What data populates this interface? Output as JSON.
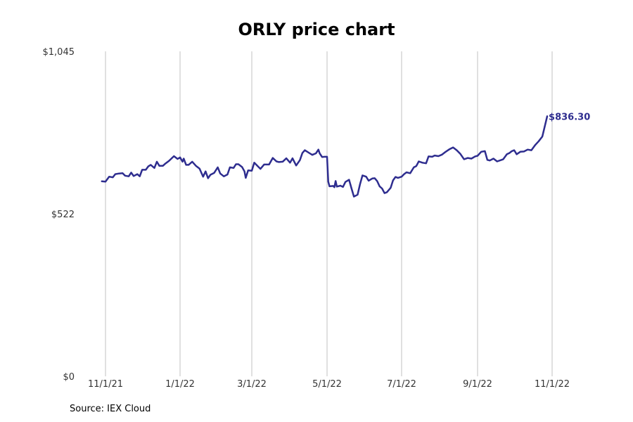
{
  "chart_data": {
    "type": "line",
    "title": "ORLY price chart",
    "source": "Source: IEX Cloud",
    "xlabel": "",
    "ylabel": "",
    "ylim": [
      0,
      1045
    ],
    "y_ticks": [
      {
        "value": 0,
        "label": "$0"
      },
      {
        "value": 522,
        "label": "$522"
      },
      {
        "value": 1045,
        "label": "$1,045"
      }
    ],
    "x_ticks": [
      {
        "date": "2021-11-01",
        "label": "11/1/21"
      },
      {
        "date": "2022-01-01",
        "label": "1/1/22"
      },
      {
        "date": "2022-03-01",
        "label": "3/1/22"
      },
      {
        "date": "2022-05-01",
        "label": "5/1/22"
      },
      {
        "date": "2022-07-01",
        "label": "7/1/22"
      },
      {
        "date": "2022-09-01",
        "label": "9/1/22"
      },
      {
        "date": "2022-11-01",
        "label": "11/1/22"
      }
    ],
    "grid": "vertical",
    "last_value_label": "$836.30",
    "color": "#2e2d8f",
    "series": [
      {
        "points": [
          [
            "2021-10-29",
            627
          ],
          [
            "2021-11-01",
            626
          ],
          [
            "2021-11-04",
            642
          ],
          [
            "2021-11-07",
            640
          ],
          [
            "2021-11-09",
            650
          ],
          [
            "2021-11-12",
            652
          ],
          [
            "2021-11-15",
            653
          ],
          [
            "2021-11-17",
            645
          ],
          [
            "2021-11-20",
            643
          ],
          [
            "2021-11-22",
            655
          ],
          [
            "2021-11-24",
            644
          ],
          [
            "2021-11-27",
            650
          ],
          [
            "2021-11-29",
            643
          ],
          [
            "2021-12-01",
            664
          ],
          [
            "2021-12-04",
            664
          ],
          [
            "2021-12-06",
            675
          ],
          [
            "2021-12-08",
            680
          ],
          [
            "2021-12-11",
            670
          ],
          [
            "2021-12-13",
            690
          ],
          [
            "2021-12-15",
            677
          ],
          [
            "2021-12-18",
            677
          ],
          [
            "2021-12-20",
            684
          ],
          [
            "2021-12-23",
            693
          ],
          [
            "2021-12-27",
            708
          ],
          [
            "2021-12-30",
            699
          ],
          [
            "2022-01-01",
            704
          ],
          [
            "2022-01-03",
            690
          ],
          [
            "2022-01-04",
            700
          ],
          [
            "2022-01-06",
            680
          ],
          [
            "2022-01-08",
            680
          ],
          [
            "2022-01-11",
            690
          ],
          [
            "2022-01-14",
            677
          ],
          [
            "2022-01-17",
            668
          ],
          [
            "2022-01-20",
            642
          ],
          [
            "2022-01-22",
            659
          ],
          [
            "2022-01-24",
            637
          ],
          [
            "2022-01-26",
            648
          ],
          [
            "2022-01-29",
            654
          ],
          [
            "2022-02-01",
            672
          ],
          [
            "2022-02-03",
            652
          ],
          [
            "2022-02-06",
            643
          ],
          [
            "2022-02-09",
            649
          ],
          [
            "2022-02-11",
            672
          ],
          [
            "2022-02-14",
            670
          ],
          [
            "2022-02-16",
            682
          ],
          [
            "2022-02-18",
            682
          ],
          [
            "2022-02-21",
            673
          ],
          [
            "2022-02-23",
            659
          ],
          [
            "2022-02-24",
            638
          ],
          [
            "2022-02-26",
            662
          ],
          [
            "2022-03-01",
            661
          ],
          [
            "2022-03-03",
            687
          ],
          [
            "2022-03-06",
            675
          ],
          [
            "2022-03-08",
            667
          ],
          [
            "2022-03-11",
            681
          ],
          [
            "2022-03-15",
            681
          ],
          [
            "2022-03-18",
            702
          ],
          [
            "2022-03-21",
            691
          ],
          [
            "2022-03-23",
            689
          ],
          [
            "2022-03-26",
            690
          ],
          [
            "2022-03-29",
            701
          ],
          [
            "2022-04-01",
            687
          ],
          [
            "2022-04-03",
            701
          ],
          [
            "2022-04-06",
            678
          ],
          [
            "2022-04-09",
            695
          ],
          [
            "2022-04-11",
            718
          ],
          [
            "2022-04-13",
            727
          ],
          [
            "2022-04-17",
            717
          ],
          [
            "2022-04-19",
            712
          ],
          [
            "2022-04-22",
            717
          ],
          [
            "2022-04-24",
            729
          ],
          [
            "2022-04-25",
            717
          ],
          [
            "2022-04-27",
            705
          ],
          [
            "2022-04-29",
            706
          ],
          [
            "2022-05-01",
            706
          ],
          [
            "2022-05-02",
            626
          ],
          [
            "2022-05-03",
            611
          ],
          [
            "2022-05-06",
            612
          ],
          [
            "2022-05-07",
            608
          ],
          [
            "2022-05-08",
            628
          ],
          [
            "2022-05-09",
            610
          ],
          [
            "2022-05-12",
            613
          ],
          [
            "2022-05-14",
            609
          ],
          [
            "2022-05-16",
            625
          ],
          [
            "2022-05-19",
            632
          ],
          [
            "2022-05-21",
            604
          ],
          [
            "2022-05-23",
            578
          ],
          [
            "2022-05-26",
            584
          ],
          [
            "2022-05-28",
            618
          ],
          [
            "2022-05-30",
            646
          ],
          [
            "2022-06-02",
            642
          ],
          [
            "2022-06-04",
            629
          ],
          [
            "2022-06-07",
            636
          ],
          [
            "2022-06-09",
            637
          ],
          [
            "2022-06-11",
            628
          ],
          [
            "2022-06-13",
            611
          ],
          [
            "2022-06-15",
            604
          ],
          [
            "2022-06-17",
            589
          ],
          [
            "2022-06-19",
            592
          ],
          [
            "2022-06-22",
            606
          ],
          [
            "2022-06-24",
            630
          ],
          [
            "2022-06-26",
            641
          ],
          [
            "2022-06-28",
            638
          ],
          [
            "2022-07-01",
            642
          ],
          [
            "2022-07-03",
            650
          ],
          [
            "2022-07-05",
            656
          ],
          [
            "2022-07-08",
            653
          ],
          [
            "2022-07-11",
            672
          ],
          [
            "2022-07-13",
            676
          ],
          [
            "2022-07-15",
            691
          ],
          [
            "2022-07-18",
            687
          ],
          [
            "2022-07-21",
            685
          ],
          [
            "2022-07-23",
            707
          ],
          [
            "2022-07-26",
            706
          ],
          [
            "2022-07-28",
            710
          ],
          [
            "2022-07-31",
            708
          ],
          [
            "2022-08-03",
            713
          ],
          [
            "2022-08-06",
            722
          ],
          [
            "2022-08-09",
            730
          ],
          [
            "2022-08-12",
            736
          ],
          [
            "2022-08-15",
            727
          ],
          [
            "2022-08-18",
            715
          ],
          [
            "2022-08-21",
            698
          ],
          [
            "2022-08-24",
            702
          ],
          [
            "2022-08-27",
            700
          ],
          [
            "2022-08-30",
            707
          ],
          [
            "2022-09-01",
            709
          ],
          [
            "2022-09-04",
            722
          ],
          [
            "2022-09-07",
            724
          ],
          [
            "2022-09-09",
            696
          ],
          [
            "2022-09-11",
            694
          ],
          [
            "2022-09-14",
            700
          ],
          [
            "2022-09-17",
            691
          ],
          [
            "2022-09-20",
            695
          ],
          [
            "2022-09-22",
            698
          ],
          [
            "2022-09-25",
            714
          ],
          [
            "2022-09-27",
            718
          ],
          [
            "2022-09-29",
            724
          ],
          [
            "2022-10-01",
            727
          ],
          [
            "2022-10-03",
            714
          ],
          [
            "2022-10-06",
            722
          ],
          [
            "2022-10-09",
            723
          ],
          [
            "2022-10-12",
            729
          ],
          [
            "2022-10-15",
            727
          ],
          [
            "2022-10-18",
            743
          ],
          [
            "2022-10-21",
            756
          ],
          [
            "2022-10-24",
            771
          ],
          [
            "2022-10-28",
            836.3
          ]
        ]
      }
    ]
  }
}
